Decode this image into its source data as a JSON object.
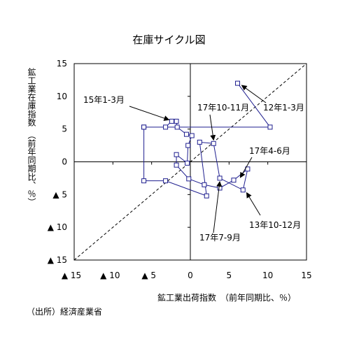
{
  "chart_data": {
    "type": "line",
    "title": "在庫サイクル図",
    "xlabel": "鉱工業出荷指数　（前年同期比、％）",
    "ylabel": "鉱工業在庫指数　（前年同期比、％）",
    "xlim": [
      -15,
      15
    ],
    "ylim": [
      -15,
      15
    ],
    "x_ticks": [
      "▲ 15",
      "▲ 10",
      "▲ 5",
      "0",
      "5",
      "10",
      "15"
    ],
    "y_ticks": [
      "15",
      "10",
      "5",
      "0",
      "▲ 5",
      "▲ 10",
      "▲ 15"
    ],
    "diagonal": "y = x (dashed)",
    "series": [
      {
        "color": "#1f1f8f",
        "points": [
          {
            "x": -6.0,
            "y": 5.3
          },
          {
            "x": -3.2,
            "y": 5.3
          },
          {
            "x": -2.4,
            "y": 6.2
          },
          {
            "x": -1.8,
            "y": 6.2
          },
          {
            "x": -1.7,
            "y": 5.3
          },
          {
            "x": -0.5,
            "y": 4.2
          },
          {
            "x": 0.2,
            "y": 4.0
          },
          {
            "x": -0.3,
            "y": 2.5
          },
          {
            "x": -0.4,
            "y": -0.2
          },
          {
            "x": -1.8,
            "y": 1.1
          },
          {
            "x": -1.8,
            "y": -0.5
          },
          {
            "x": -0.2,
            "y": -2.6
          },
          {
            "x": 1.8,
            "y": -3.5
          },
          {
            "x": 3.8,
            "y": -4.0
          },
          {
            "x": 5.6,
            "y": -2.8
          },
          {
            "x": 7.4,
            "y": -1.1
          },
          {
            "x": 6.8,
            "y": -4.3
          },
          {
            "x": 3.8,
            "y": -2.5
          },
          {
            "x": 3.0,
            "y": 2.8
          },
          {
            "x": 1.2,
            "y": 3.0
          },
          {
            "x": 2.1,
            "y": -5.2
          },
          {
            "x": -3.2,
            "y": -2.9
          },
          {
            "x": -6.0,
            "y": -2.9
          },
          {
            "x": -6.0,
            "y": 5.3
          },
          {
            "x": 10.3,
            "y": 5.3
          },
          {
            "x": 6.1,
            "y": 12.0
          }
        ]
      }
    ],
    "annotations": [
      {
        "text": "15年1-3月",
        "x": -2.4,
        "y": 6.2
      },
      {
        "text": "17年10-11月",
        "x": 3.0,
        "y": 2.8
      },
      {
        "text": "12年1-3月",
        "x": 6.1,
        "y": 12.0
      },
      {
        "text": "17年4-6月",
        "x": 6.0,
        "y": -2.6
      },
      {
        "text": "13年10-12月",
        "x": 7.0,
        "y": -4.3
      },
      {
        "text": "17年7-9月",
        "x": 3.8,
        "y": -2.5
      }
    ]
  },
  "source": "（出所）経済産業省"
}
